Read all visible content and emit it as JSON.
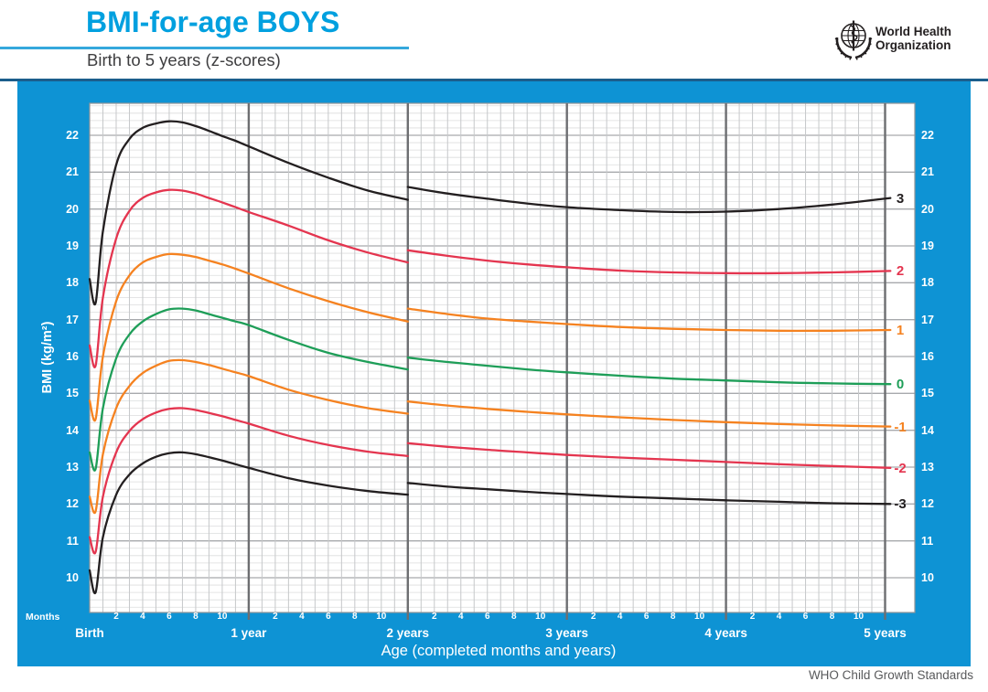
{
  "header": {
    "title": "BMI-for-age BOYS",
    "subtitle": "Birth to 5 years (z-scores)",
    "who_logo": {
      "icon": "who-emblem",
      "line1": "World Health",
      "line2": "Organization"
    }
  },
  "footer": {
    "credit": "WHO Child Growth Standards"
  },
  "colors": {
    "panel_blue": "#0E93D4",
    "title_blue": "#00A0DF",
    "underline_blue": "#35A8DC",
    "rule_dark_blue": "#1B5E8C",
    "subtitle_text": "#3E3E40",
    "footer_text": "#58595B",
    "grid_minor_h": "#DCDDDE",
    "grid_minor_v": "#C6C8CA",
    "grid_major": "#A7A9AC",
    "grid_border": "#939598",
    "grid_year": "#6D6E71",
    "curve_black": "#231F20",
    "curve_red": "#E4354F",
    "curve_orange": "#F58220",
    "curve_green": "#1E9E58"
  },
  "axes": {
    "y_label": "BMI (kg/m²)",
    "y_ticks": [
      22,
      21,
      20,
      19,
      18,
      17,
      16,
      15,
      14,
      13,
      12,
      11,
      10
    ],
    "x_label": "Age (completed months and years)",
    "months_caption": "Months",
    "month_ticks": [
      2,
      4,
      6,
      8,
      10
    ],
    "year_labels": [
      "Birth",
      "1 year",
      "2 years",
      "3 years",
      "4 years",
      "5 years"
    ]
  },
  "chart_data": {
    "type": "line",
    "title": "BMI-for-age BOYS — Birth to 5 years (z-scores)",
    "xlabel": "Age (completed months and years)",
    "ylabel": "BMI (kg/m²)",
    "x_unit": "months",
    "xlim": [
      0,
      60
    ],
    "ylim": [
      9.05,
      22.9
    ],
    "grid": true,
    "legend_position": "right-edge-curve-labels",
    "series": [
      {
        "name": "3",
        "z": 3,
        "color_key": "curve_black",
        "pre24": [
          [
            0,
            18.1
          ],
          [
            0.45,
            17.45
          ],
          [
            1,
            19.4
          ],
          [
            2,
            21.2
          ],
          [
            3,
            21.9
          ],
          [
            4,
            22.2
          ],
          [
            5,
            22.32
          ],
          [
            6,
            22.38
          ],
          [
            7,
            22.35
          ],
          [
            8,
            22.25
          ],
          [
            9,
            22.12
          ],
          [
            10,
            21.98
          ],
          [
            11,
            21.85
          ],
          [
            12,
            21.7
          ],
          [
            15,
            21.25
          ],
          [
            18,
            20.85
          ],
          [
            21,
            20.5
          ],
          [
            24,
            20.25
          ]
        ],
        "post24": [
          [
            24,
            20.6
          ],
          [
            27,
            20.42
          ],
          [
            30,
            20.28
          ],
          [
            33,
            20.15
          ],
          [
            36,
            20.05
          ],
          [
            40,
            19.97
          ],
          [
            44,
            19.92
          ],
          [
            48,
            19.93
          ],
          [
            52,
            20.0
          ],
          [
            56,
            20.12
          ],
          [
            60.4,
            20.3
          ]
        ]
      },
      {
        "name": "2",
        "z": 2,
        "color_key": "curve_red",
        "pre24": [
          [
            0,
            16.3
          ],
          [
            0.45,
            15.75
          ],
          [
            1,
            17.6
          ],
          [
            2,
            19.2
          ],
          [
            3,
            19.95
          ],
          [
            4,
            20.3
          ],
          [
            5,
            20.45
          ],
          [
            6,
            20.52
          ],
          [
            7,
            20.5
          ],
          [
            8,
            20.42
          ],
          [
            9,
            20.3
          ],
          [
            10,
            20.18
          ],
          [
            11,
            20.05
          ],
          [
            12,
            19.92
          ],
          [
            15,
            19.55
          ],
          [
            18,
            19.15
          ],
          [
            21,
            18.82
          ],
          [
            24,
            18.55
          ]
        ],
        "post24": [
          [
            24,
            18.88
          ],
          [
            27,
            18.73
          ],
          [
            30,
            18.6
          ],
          [
            33,
            18.5
          ],
          [
            36,
            18.42
          ],
          [
            40,
            18.33
          ],
          [
            44,
            18.28
          ],
          [
            48,
            18.26
          ],
          [
            52,
            18.26
          ],
          [
            56,
            18.28
          ],
          [
            60.4,
            18.32
          ]
        ]
      },
      {
        "name": "1",
        "z": 1,
        "color_key": "curve_orange",
        "pre24": [
          [
            0,
            14.8
          ],
          [
            0.45,
            14.3
          ],
          [
            1,
            16.0
          ],
          [
            2,
            17.5
          ],
          [
            3,
            18.2
          ],
          [
            4,
            18.55
          ],
          [
            5,
            18.7
          ],
          [
            6,
            18.78
          ],
          [
            7,
            18.76
          ],
          [
            8,
            18.7
          ],
          [
            9,
            18.6
          ],
          [
            10,
            18.5
          ],
          [
            11,
            18.38
          ],
          [
            12,
            18.25
          ],
          [
            15,
            17.85
          ],
          [
            18,
            17.5
          ],
          [
            21,
            17.2
          ],
          [
            24,
            16.95
          ]
        ],
        "post24": [
          [
            24,
            17.3
          ],
          [
            27,
            17.15
          ],
          [
            30,
            17.03
          ],
          [
            33,
            16.95
          ],
          [
            36,
            16.88
          ],
          [
            40,
            16.8
          ],
          [
            44,
            16.75
          ],
          [
            48,
            16.72
          ],
          [
            52,
            16.7
          ],
          [
            56,
            16.7
          ],
          [
            60.4,
            16.72
          ]
        ]
      },
      {
        "name": "0",
        "z": 0,
        "color_key": "curve_green",
        "pre24": [
          [
            0,
            13.4
          ],
          [
            0.45,
            12.95
          ],
          [
            1,
            14.6
          ],
          [
            2,
            15.95
          ],
          [
            3,
            16.6
          ],
          [
            4,
            16.95
          ],
          [
            5,
            17.15
          ],
          [
            6,
            17.28
          ],
          [
            7,
            17.3
          ],
          [
            8,
            17.25
          ],
          [
            9,
            17.15
          ],
          [
            10,
            17.05
          ],
          [
            11,
            16.95
          ],
          [
            12,
            16.85
          ],
          [
            15,
            16.45
          ],
          [
            18,
            16.1
          ],
          [
            21,
            15.85
          ],
          [
            24,
            15.65
          ]
        ],
        "post24": [
          [
            24,
            15.97
          ],
          [
            27,
            15.85
          ],
          [
            30,
            15.75
          ],
          [
            33,
            15.65
          ],
          [
            36,
            15.57
          ],
          [
            40,
            15.48
          ],
          [
            44,
            15.4
          ],
          [
            48,
            15.35
          ],
          [
            52,
            15.3
          ],
          [
            56,
            15.27
          ],
          [
            60.4,
            15.25
          ]
        ]
      },
      {
        "name": "-1",
        "z": -1,
        "color_key": "curve_orange",
        "pre24": [
          [
            0,
            12.2
          ],
          [
            0.45,
            11.8
          ],
          [
            1,
            13.35
          ],
          [
            2,
            14.6
          ],
          [
            3,
            15.2
          ],
          [
            4,
            15.55
          ],
          [
            5,
            15.75
          ],
          [
            6,
            15.88
          ],
          [
            7,
            15.9
          ],
          [
            8,
            15.85
          ],
          [
            9,
            15.77
          ],
          [
            10,
            15.67
          ],
          [
            11,
            15.57
          ],
          [
            12,
            15.47
          ],
          [
            15,
            15.1
          ],
          [
            18,
            14.82
          ],
          [
            21,
            14.6
          ],
          [
            24,
            14.45
          ]
        ],
        "post24": [
          [
            24,
            14.78
          ],
          [
            27,
            14.67
          ],
          [
            30,
            14.58
          ],
          [
            33,
            14.5
          ],
          [
            36,
            14.43
          ],
          [
            40,
            14.35
          ],
          [
            44,
            14.28
          ],
          [
            48,
            14.22
          ],
          [
            52,
            14.17
          ],
          [
            56,
            14.13
          ],
          [
            60.4,
            14.1
          ]
        ]
      },
      {
        "name": "-2",
        "z": -2,
        "color_key": "curve_red",
        "pre24": [
          [
            0,
            11.1
          ],
          [
            0.45,
            10.7
          ],
          [
            1,
            12.2
          ],
          [
            2,
            13.4
          ],
          [
            3,
            13.98
          ],
          [
            4,
            14.3
          ],
          [
            5,
            14.48
          ],
          [
            6,
            14.58
          ],
          [
            7,
            14.6
          ],
          [
            8,
            14.55
          ],
          [
            9,
            14.47
          ],
          [
            10,
            14.38
          ],
          [
            11,
            14.28
          ],
          [
            12,
            14.18
          ],
          [
            15,
            13.85
          ],
          [
            18,
            13.6
          ],
          [
            21,
            13.42
          ],
          [
            24,
            13.3
          ]
        ],
        "post24": [
          [
            24,
            13.65
          ],
          [
            27,
            13.55
          ],
          [
            30,
            13.47
          ],
          [
            33,
            13.4
          ],
          [
            36,
            13.33
          ],
          [
            40,
            13.26
          ],
          [
            44,
            13.2
          ],
          [
            48,
            13.14
          ],
          [
            52,
            13.08
          ],
          [
            56,
            13.03
          ],
          [
            60.4,
            12.98
          ]
        ]
      },
      {
        "name": "-3",
        "z": -3,
        "color_key": "curve_black",
        "pre24": [
          [
            0,
            10.2
          ],
          [
            0.45,
            9.6
          ],
          [
            1,
            11.1
          ],
          [
            2,
            12.25
          ],
          [
            3,
            12.8
          ],
          [
            4,
            13.1
          ],
          [
            5,
            13.28
          ],
          [
            6,
            13.38
          ],
          [
            7,
            13.4
          ],
          [
            8,
            13.35
          ],
          [
            9,
            13.27
          ],
          [
            10,
            13.18
          ],
          [
            11,
            13.08
          ],
          [
            12,
            12.98
          ],
          [
            15,
            12.7
          ],
          [
            18,
            12.5
          ],
          [
            21,
            12.35
          ],
          [
            24,
            12.25
          ]
        ],
        "post24": [
          [
            24,
            12.57
          ],
          [
            27,
            12.47
          ],
          [
            30,
            12.4
          ],
          [
            33,
            12.33
          ],
          [
            36,
            12.27
          ],
          [
            40,
            12.2
          ],
          [
            44,
            12.15
          ],
          [
            48,
            12.1
          ],
          [
            52,
            12.06
          ],
          [
            56,
            12.02
          ],
          [
            60.4,
            12.0
          ]
        ]
      }
    ]
  }
}
